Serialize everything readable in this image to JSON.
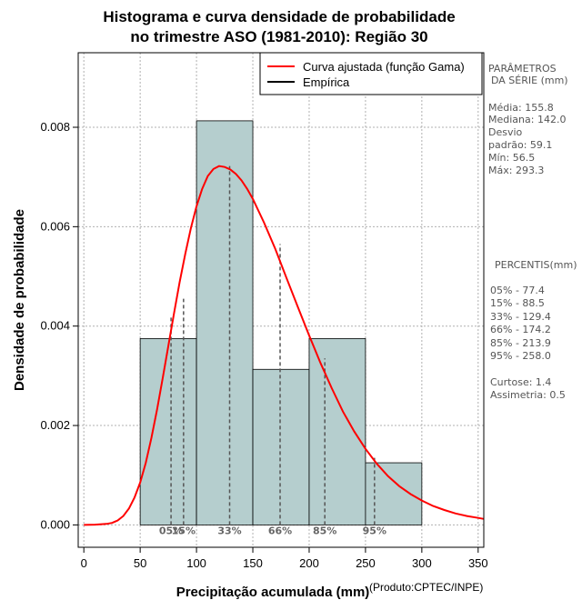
{
  "chart_data": {
    "type": "bar",
    "title": [
      "Histograma e curva densidade de probabilidade",
      "no trimestre ASO (1981-2010): Região 30"
    ],
    "xlabel": "Precipitação acumulada (mm)",
    "ylabel": "Densidade de probabilidade",
    "credit": "(Produto:CPTEC/INPE)",
    "xlim": [
      -5,
      355
    ],
    "ylim": [
      -0.00045,
      0.0095
    ],
    "xticks": [
      0,
      50,
      100,
      150,
      200,
      250,
      300,
      350
    ],
    "yticks": [
      0.0,
      0.002,
      0.004,
      0.006,
      0.008
    ],
    "ytick_labels": [
      "0.000",
      "0.002",
      "0.004",
      "0.006",
      "0.008"
    ],
    "grid": true,
    "histogram": {
      "bins": [
        [
          50,
          100
        ],
        [
          100,
          150
        ],
        [
          150,
          200
        ],
        [
          200,
          250
        ],
        [
          250,
          300
        ]
      ],
      "density": [
        0.00375,
        0.00813,
        0.00313,
        0.00375,
        0.00125
      ],
      "fill": "#b5cece"
    },
    "gamma_curve": {
      "name": "Curva ajustada (função Gama)",
      "color": "#ff0000",
      "x": [
        0,
        10,
        20,
        25,
        30,
        35,
        40,
        45,
        50,
        55,
        60,
        65,
        70,
        75,
        80,
        85,
        90,
        95,
        100,
        105,
        110,
        115,
        120,
        125,
        130,
        135,
        140,
        145,
        150,
        160,
        170,
        180,
        190,
        200,
        210,
        220,
        230,
        240,
        250,
        260,
        270,
        280,
        290,
        300,
        310,
        320,
        330,
        340,
        350,
        355
      ],
      "y": [
        0.0,
        5e-06,
        2e-05,
        4e-05,
        9e-05,
        0.00018,
        0.00033,
        0.00055,
        0.00085,
        0.00125,
        0.00175,
        0.00232,
        0.00295,
        0.0036,
        0.00425,
        0.00488,
        0.00545,
        0.00597,
        0.00641,
        0.00676,
        0.00702,
        0.00716,
        0.00722,
        0.0072,
        0.00715,
        0.00706,
        0.00693,
        0.00676,
        0.00656,
        0.00608,
        0.00555,
        0.00496,
        0.00438,
        0.00381,
        0.00326,
        0.00275,
        0.00228,
        0.00188,
        0.00153,
        0.00123,
        0.00098,
        0.00078,
        0.00062,
        0.00049,
        0.00038,
        0.0003,
        0.00023,
        0.00018,
        0.00014,
        0.00012
      ]
    },
    "legend": {
      "placement": "top-right",
      "items": [
        {
          "label": "Curva ajustada (função Gama)",
          "color": "#ff0000"
        },
        {
          "label": "Empírica",
          "color": "#000000"
        }
      ]
    },
    "percentile_markers": [
      {
        "label": "05%",
        "x": 77.4,
        "top": 0.0042
      },
      {
        "label": "15%",
        "x": 88.5,
        "top": 0.00455
      },
      {
        "label": "33%",
        "x": 129.4,
        "top": 0.00722
      },
      {
        "label": "66%",
        "x": 174.2,
        "top": 0.00565
      },
      {
        "label": "85%",
        "x": 213.9,
        "top": 0.00335
      },
      {
        "label": "95%",
        "x": 258.0,
        "top": 0.00135
      }
    ]
  },
  "side_panel": {
    "params_title": [
      "PARÂMETROS",
      "DA SÉRIE (mm)"
    ],
    "params": [
      "Média:  155.8",
      "Mediana:  142.0",
      "Desvio",
      "padrão:  59.1",
      "Mín:  56.5",
      "Máx:  293.3"
    ],
    "percentis_title": "PERCENTIS(mm)",
    "percentis": [
      "05% -  77.4",
      "15% -  88.5",
      "33% -  129.4",
      "66% -  174.2",
      "85% -  213.9",
      "95% -  258.0"
    ],
    "shape": [
      "Curtose:  1.4",
      "Assimetria:  0.5"
    ]
  }
}
